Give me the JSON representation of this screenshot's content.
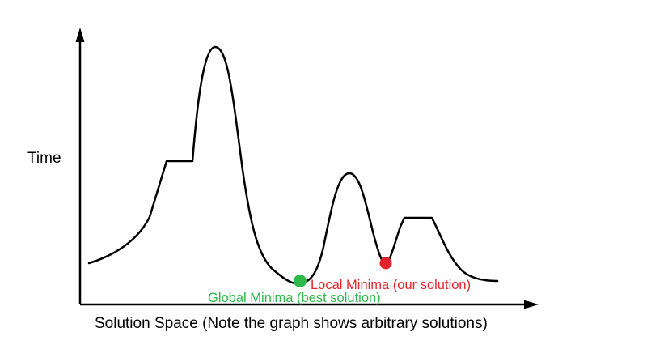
{
  "diagram": {
    "y_axis_label": "Time",
    "x_axis_label": "Solution Space (Note the graph shows arbitrary solutions)",
    "markers": {
      "global": {
        "label": "Global Minima (best solution)",
        "color": "#2db84a"
      },
      "local": {
        "label": "Local Minima (our solution)",
        "color": "#e8222b"
      }
    },
    "line_color": "#000000"
  }
}
